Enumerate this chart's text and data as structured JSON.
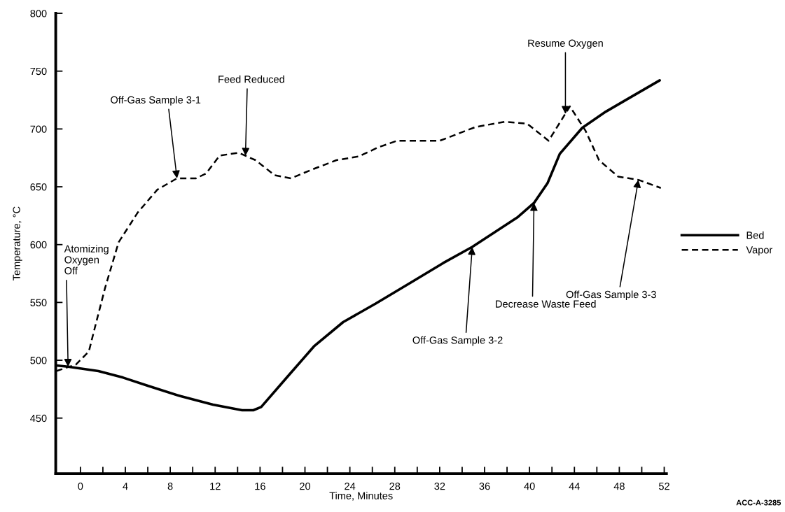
{
  "chart_data": {
    "type": "line",
    "xlabel": "Time, Minutes",
    "ylabel": "Temperature, °C",
    "xlim": [
      -2.2,
      52.2
    ],
    "ylim": [
      402,
      800
    ],
    "xticks": [
      0,
      {
        "value": 2,
        "label": null
      },
      4,
      {
        "value": 6,
        "label": null
      },
      8,
      {
        "value": 10,
        "label": null
      },
      12,
      {
        "value": 14,
        "label": null
      },
      16,
      {
        "value": 18,
        "label": null
      },
      20,
      {
        "value": 22,
        "label": null
      },
      24,
      {
        "value": 26,
        "label": null
      },
      28,
      {
        "value": 30,
        "label": null
      },
      32,
      {
        "value": 34,
        "label": null
      },
      36,
      {
        "value": 38,
        "label": null
      },
      40,
      {
        "value": 42,
        "label": null
      },
      44,
      {
        "value": 46,
        "label": null
      },
      48,
      {
        "value": 50,
        "label": null
      },
      52
    ],
    "yticks": [
      450,
      500,
      550,
      600,
      650,
      700,
      750,
      800
    ],
    "grid": false,
    "legend": "right",
    "series": [
      {
        "name": "Bed",
        "color": "#000000",
        "line_style": "solid",
        "x": [
          -2.15,
          -1.1,
          1.6,
          3.8,
          6,
          8.9,
          11.8,
          14.4,
          15.4,
          16.1,
          18.5,
          20.8,
          23.4,
          26.3,
          29.4,
          32.3,
          34.9,
          36.9,
          38.9,
          40.4,
          41.6,
          42.7,
          44.7,
          46.8,
          49.1,
          51.6
        ],
        "values": [
          495.5,
          494.4,
          490.7,
          485,
          478,
          469,
          461.6,
          456.8,
          456.8,
          459.6,
          486.4,
          512,
          533,
          549,
          567,
          584,
          598,
          610.7,
          623.4,
          636,
          653,
          678.5,
          701,
          715,
          728,
          742
        ]
      },
      {
        "name": "Vapor",
        "color": "#000000",
        "line_style": "dashed",
        "x": [
          -2.15,
          -0.4,
          0.75,
          1.3,
          2.2,
          3.4,
          5.1,
          6.85,
          8.6,
          10.3,
          11.2,
          12.4,
          14.1,
          15.6,
          17.3,
          18.75,
          20.5,
          22.8,
          24.8,
          26.5,
          28.2,
          32,
          35.2,
          37.8,
          39.8,
          41.7,
          43.6,
          45,
          46.2,
          47.9,
          49.7,
          51.7
        ],
        "values": [
          490.7,
          496.3,
          507.6,
          528.8,
          562.7,
          602,
          627.7,
          647.5,
          657.3,
          657.3,
          661.6,
          677,
          679.4,
          673,
          660,
          657.3,
          664.4,
          673,
          676.3,
          684,
          689.8,
          689.8,
          701.7,
          706.2,
          704.5,
          689.8,
          719.5,
          698.3,
          672.9,
          658.8,
          656,
          649
        ]
      }
    ],
    "annotations": [
      {
        "text": "Atomizing\nOxygen\nOff",
        "x": -1.1,
        "y": 494.4
      },
      {
        "text": "Off-Gas Sample 3-1",
        "x": 8.6,
        "y": 657.3
      },
      {
        "text": "Feed Reduced",
        "x": 14.7,
        "y": 676.8
      },
      {
        "text": "Resume Oxygen",
        "x": 43.2,
        "y": 713
      },
      {
        "text": "Off-Gas Sample 3-2",
        "x": 34.9,
        "y": 598
      },
      {
        "text": "Decrease Waste Feed",
        "x": 40.4,
        "y": 636
      },
      {
        "text": "Off-Gas Sample 3-3",
        "x": 49.7,
        "y": 656
      },
      "ACC-A-3285"
    ]
  }
}
